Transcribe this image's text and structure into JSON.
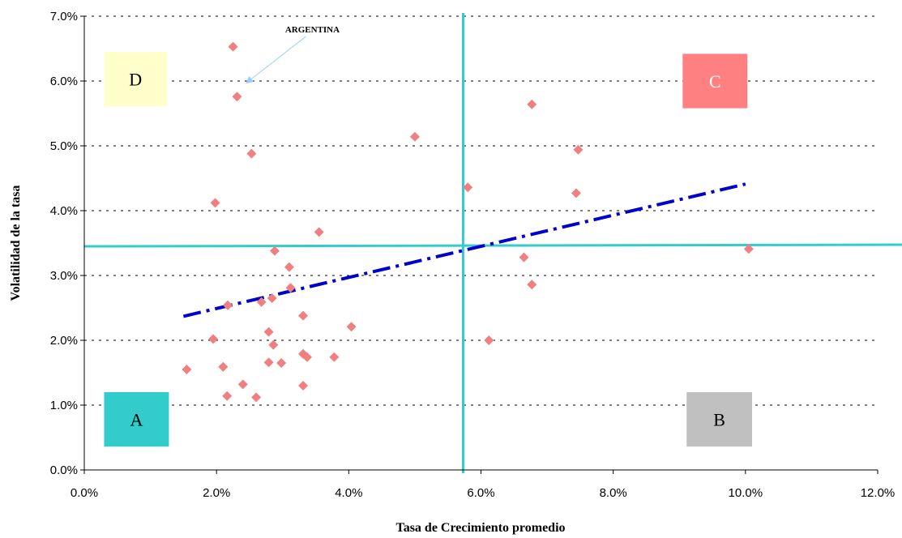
{
  "chart_data": {
    "type": "scatter",
    "title": "",
    "xlabel": "Tasa de Crecimiento promedio",
    "ylabel": "Volatilidad de la tasa",
    "xlim": [
      0,
      0.12
    ],
    "ylim": [
      0,
      0.07
    ],
    "x_ticks": [
      "0.0%",
      "2.0%",
      "4.0%",
      "6.0%",
      "8.0%",
      "10.0%",
      "12.0%"
    ],
    "y_ticks": [
      "0.0%",
      "1.0%",
      "2.0%",
      "3.0%",
      "4.0%",
      "5.0%",
      "6.0%",
      "7.0%"
    ],
    "grid": "horizontal-dotted",
    "marker_color": "#f08080",
    "points": [
      {
        "x": 0.0225,
        "y": 0.0653
      },
      {
        "x": 0.0231,
        "y": 0.0576
      },
      {
        "x": 0.0253,
        "y": 0.0488
      },
      {
        "x": 0.0198,
        "y": 0.0412
      },
      {
        "x": 0.05,
        "y": 0.0514
      },
      {
        "x": 0.0355,
        "y": 0.0367
      },
      {
        "x": 0.0288,
        "y": 0.0338
      },
      {
        "x": 0.031,
        "y": 0.0313
      },
      {
        "x": 0.0312,
        "y": 0.0281
      },
      {
        "x": 0.0284,
        "y": 0.0265
      },
      {
        "x": 0.0268,
        "y": 0.0259
      },
      {
        "x": 0.0217,
        "y": 0.0254
      },
      {
        "x": 0.0331,
        "y": 0.0238
      },
      {
        "x": 0.0279,
        "y": 0.0213
      },
      {
        "x": 0.0404,
        "y": 0.0221
      },
      {
        "x": 0.0195,
        "y": 0.0202
      },
      {
        "x": 0.0286,
        "y": 0.0193
      },
      {
        "x": 0.0331,
        "y": 0.0179
      },
      {
        "x": 0.0337,
        "y": 0.0174
      },
      {
        "x": 0.0378,
        "y": 0.0174
      },
      {
        "x": 0.0279,
        "y": 0.0166
      },
      {
        "x": 0.0298,
        "y": 0.0165
      },
      {
        "x": 0.021,
        "y": 0.0159
      },
      {
        "x": 0.0155,
        "y": 0.0155
      },
      {
        "x": 0.024,
        "y": 0.0132
      },
      {
        "x": 0.0331,
        "y": 0.013
      },
      {
        "x": 0.0216,
        "y": 0.0114
      },
      {
        "x": 0.026,
        "y": 0.0112
      },
      {
        "x": 0.058,
        "y": 0.0436
      },
      {
        "x": 0.0612,
        "y": 0.02
      },
      {
        "x": 0.0677,
        "y": 0.0564
      },
      {
        "x": 0.0747,
        "y": 0.0494
      },
      {
        "x": 0.0744,
        "y": 0.0427
      },
      {
        "x": 0.0665,
        "y": 0.0328
      },
      {
        "x": 0.0677,
        "y": 0.0286
      },
      {
        "x": 0.1005,
        "y": 0.0341
      }
    ],
    "trend_line": {
      "points": [
        {
          "x": 0.015,
          "y": 0.0237
        },
        {
          "x": 0.1,
          "y": 0.0441
        }
      ],
      "color": "#0000cc",
      "style": "dash-dot"
    },
    "reference_lines": {
      "vertical_x": 0.0573,
      "horizontal_y": 0.0345,
      "color": "#33cccc"
    },
    "quadrants": [
      {
        "label": "D",
        "x": [
          0.003,
          0.0125
        ],
        "y": [
          0.0561,
          0.0645
        ],
        "fill": "#ffffcc",
        "text_color": "#000000"
      },
      {
        "label": "C",
        "x": [
          0.0905,
          0.1003
        ],
        "y": [
          0.0558,
          0.0642
        ],
        "fill": "#ff8080",
        "text_color": "#ffffff"
      },
      {
        "label": "A",
        "x": [
          0.003,
          0.0128
        ],
        "y": [
          0.0036,
          0.012
        ],
        "fill": "#33cccc",
        "text_color": "#000000"
      },
      {
        "label": "B",
        "x": [
          0.0911,
          0.101
        ],
        "y": [
          0.0036,
          0.012
        ],
        "fill": "#c0c0c0",
        "text_color": "#000000"
      }
    ],
    "annotations": [
      {
        "text": "ARGENTINA",
        "x": 0.0345,
        "y": 0.0675,
        "arrow_to": {
          "x": 0.0245,
          "y": 0.0597
        },
        "arrow_color": "#99ccff"
      }
    ]
  }
}
